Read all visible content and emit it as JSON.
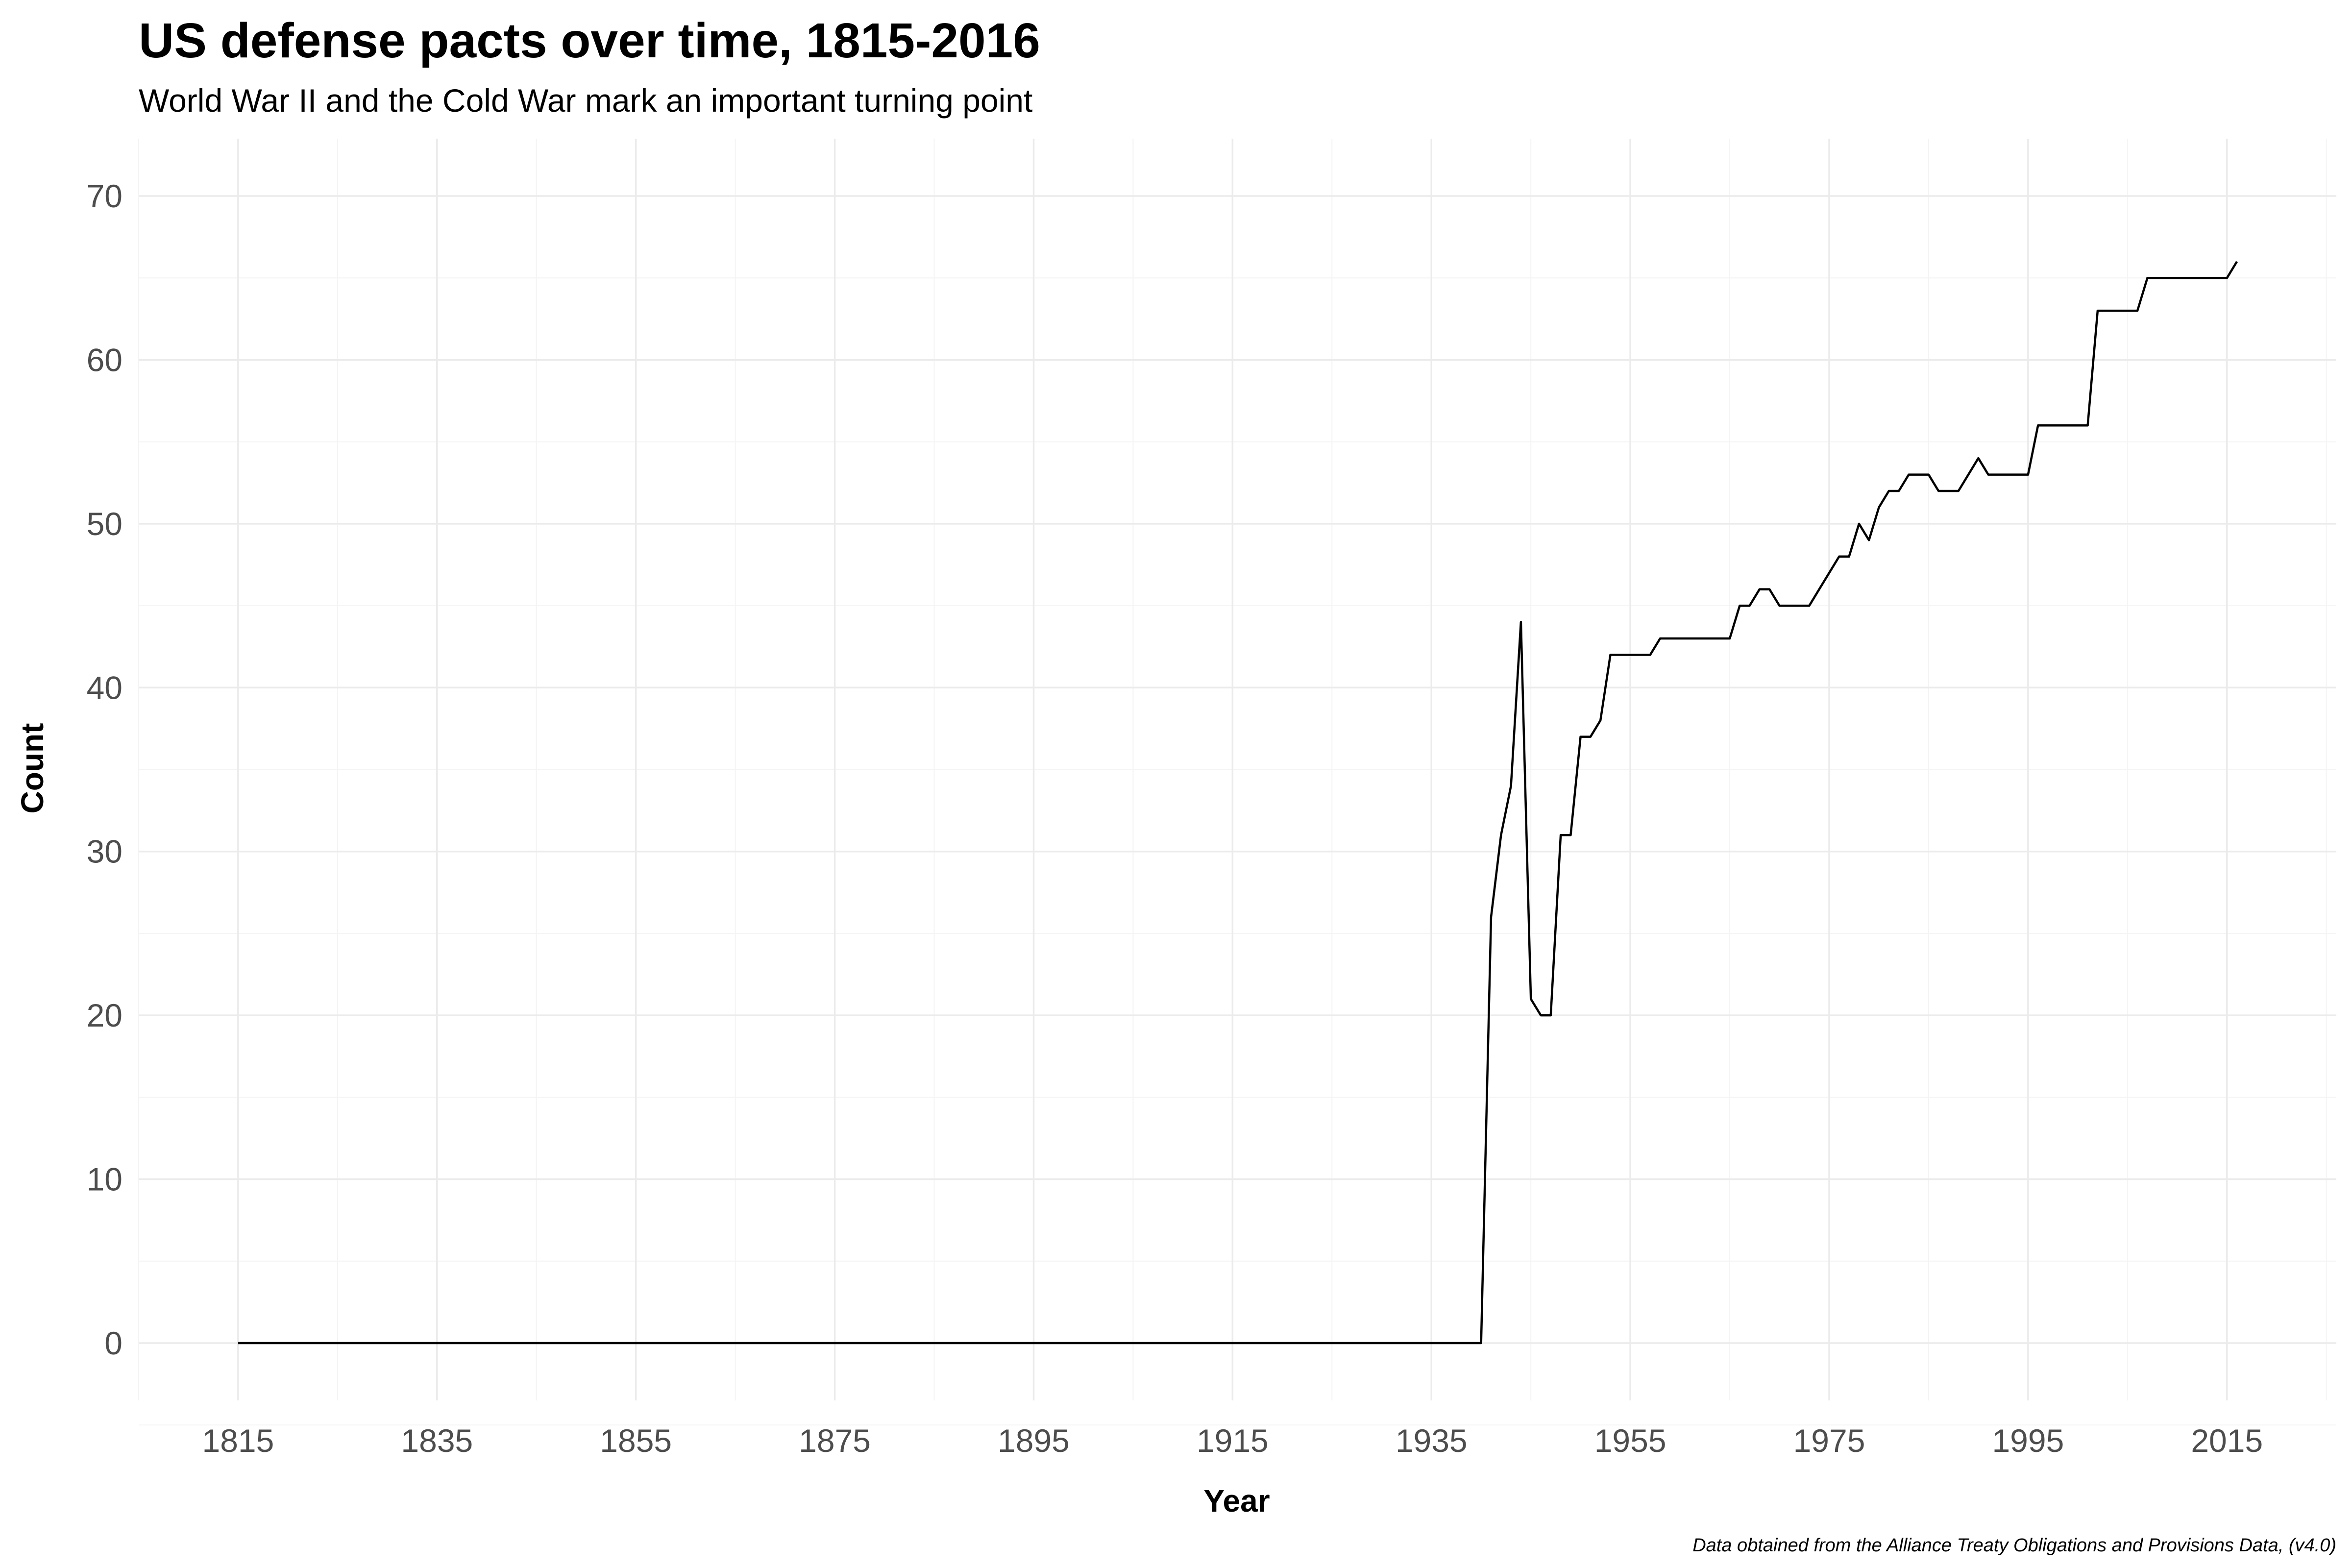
{
  "chart_data": {
    "type": "line",
    "title": "US defense pacts over time, 1815-2016",
    "subtitle": "World War II and the Cold War mark an important turning point",
    "xlabel": "Year",
    "ylabel": "Count",
    "caption": "Data obtained from the Alliance Treaty Obligations and Provisions Data, (v4.0)",
    "xlim": [
      1805,
      2026
    ],
    "ylim": [
      -3.5,
      73.5
    ],
    "x_ticks": [
      1815,
      1835,
      1855,
      1875,
      1895,
      1915,
      1935,
      1955,
      1975,
      1995,
      2015
    ],
    "y_ticks": [
      0,
      10,
      20,
      30,
      40,
      50,
      60,
      70
    ],
    "grid": true,
    "legend": "none",
    "line_color": "#000000",
    "series": [
      {
        "x": [
          1815,
          1940,
          1941,
          1942,
          1943,
          1944,
          1945,
          1946,
          1947,
          1948,
          1949,
          1950,
          1951,
          1952,
          1953,
          1954,
          1955,
          1956,
          1957,
          1958,
          1959,
          1960,
          1961,
          1962,
          1963,
          1964,
          1965,
          1966,
          1967,
          1968,
          1969,
          1970,
          1971,
          1972,
          1973,
          1974,
          1975,
          1976,
          1977,
          1978,
          1979,
          1980,
          1981,
          1982,
          1983,
          1984,
          1985,
          1986,
          1987,
          1988,
          1989,
          1990,
          1991,
          1992,
          1993,
          1994,
          1995,
          1996,
          1997,
          1998,
          1999,
          2000,
          2001,
          2002,
          2003,
          2004,
          2005,
          2006,
          2007,
          2008,
          2009,
          2010,
          2011,
          2012,
          2013,
          2014,
          2015,
          2016
        ],
        "y": [
          0,
          0,
          26,
          31,
          34,
          44,
          21,
          20,
          20,
          31,
          31,
          37,
          37,
          38,
          42,
          42,
          42,
          42,
          42,
          43,
          43,
          43,
          43,
          43,
          43,
          43,
          43,
          45,
          45,
          46,
          46,
          45,
          45,
          45,
          45,
          46,
          47,
          48,
          48,
          50,
          49,
          51,
          52,
          52,
          53,
          53,
          53,
          52,
          52,
          52,
          53,
          54,
          53,
          53,
          53,
          53,
          53,
          56,
          56,
          56,
          56,
          56,
          56,
          63,
          63,
          63,
          63,
          63,
          65,
          65,
          65,
          65,
          65,
          65,
          65,
          65,
          65,
          66
        ]
      }
    ]
  }
}
